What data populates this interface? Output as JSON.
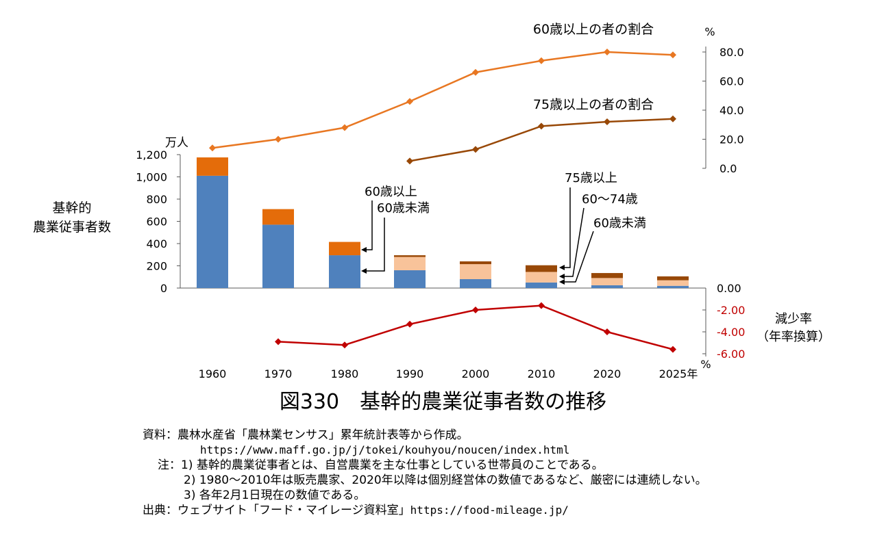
{
  "chart_data": {
    "type": "bar",
    "unit_left": "万人",
    "ylabel_left": [
      "基幹的",
      "農業従事者数"
    ],
    "bar_axis": {
      "ylim": [
        0,
        1200
      ],
      "ticks": [
        "0",
        "200",
        "400",
        "600",
        "800",
        "1,000",
        "1,200"
      ],
      "tick_values": [
        0,
        200,
        400,
        600,
        800,
        1000,
        1200
      ]
    },
    "categories": [
      "1960",
      "1970",
      "1980",
      "1990",
      "2000",
      "2010",
      "2020",
      "2025年"
    ],
    "x_values": [
      1960,
      1970,
      1980,
      1990,
      2000,
      2010,
      2020,
      2025
    ],
    "stacked_series": [
      {
        "name": "60歳未満",
        "values": [
          1010,
          570,
          295,
          160,
          80,
          50,
          25,
          20
        ],
        "color": "#4f81bd"
      },
      {
        "name": "60～74歳",
        "values": [
          0,
          0,
          0,
          120,
          135,
          95,
          65,
          50
        ],
        "color": "#f8c39a"
      },
      {
        "name": "60歳以上",
        "values": [
          165,
          140,
          120,
          0,
          0,
          0,
          0,
          0
        ],
        "color": "#e46c0a"
      },
      {
        "name": "75歳以上",
        "values": [
          0,
          0,
          0,
          15,
          25,
          60,
          45,
          35
        ],
        "color": "#984807"
      }
    ],
    "share_axis": {
      "unit": "%",
      "ylim": [
        0,
        80
      ],
      "ticks": [
        "0.0",
        "20.0",
        "40.0",
        "60.0",
        "80.0"
      ],
      "tick_values": [
        0,
        20,
        40,
        60,
        80
      ]
    },
    "share_series": [
      {
        "name": "60歳以上の者の割合",
        "x": [
          1960,
          1970,
          1980,
          1990,
          2000,
          2010,
          2020,
          2025
        ],
        "values": [
          14,
          20,
          28,
          46,
          66,
          74,
          80,
          78
        ],
        "color": "#e87722"
      },
      {
        "name": "75歳以上の者の割合",
        "x": [
          1990,
          2000,
          2010,
          2020,
          2025
        ],
        "values": [
          5,
          13,
          29,
          32,
          34
        ],
        "color": "#984807"
      }
    ],
    "rate_axis": {
      "label": [
        "減少率",
        "（年率換算）"
      ],
      "unit": "%",
      "ylim": [
        -6,
        0
      ],
      "ticks": [
        "0.00",
        "-2.00",
        "-4.00",
        "-6.00"
      ],
      "tick_values": [
        0,
        -2,
        -4,
        -6
      ]
    },
    "rate_series": {
      "name": "減少率",
      "x": [
        1970,
        1980,
        1990,
        2000,
        2010,
        2020,
        2025
      ],
      "values": [
        -4.9,
        -5.2,
        -3.3,
        -2.0,
        -1.6,
        -4.0,
        -5.6
      ],
      "color": "#c00000"
    },
    "annotations": {
      "group1": [
        "60歳以上",
        "60歳未満"
      ],
      "group2": [
        "75歳以上",
        "60～74歳",
        "60歳未満"
      ]
    },
    "colors": {
      "axis": "#595959",
      "grid_label": "#000000",
      "negative_tick": "#c00000"
    }
  },
  "figure": {
    "title": "図330　基幹的農業従事者数の推移"
  },
  "notes": {
    "source_label": "資料：",
    "source_text": "農林水産省「農林業センサス」累年統計表等から作成。",
    "source_url": "https://www.maff.go.jp/j/tokei/kouhyou/noucen/index.html",
    "note_label": "注：",
    "note_1": "1) 基幹的農業従事者とは、自営農業を主な仕事としている世帯員のことである。",
    "note_2": "2) 1980～2010年は販売農家、2020年以降は個別経営体の数値であるなど、厳密には連続しない。",
    "note_3": "3) 各年2月1日現在の数値である。",
    "origin_label": "出典：",
    "origin_text": "ウェブサイト「フード・マイレージ資料室」",
    "origin_url": "https://food-mileage.jp/"
  }
}
